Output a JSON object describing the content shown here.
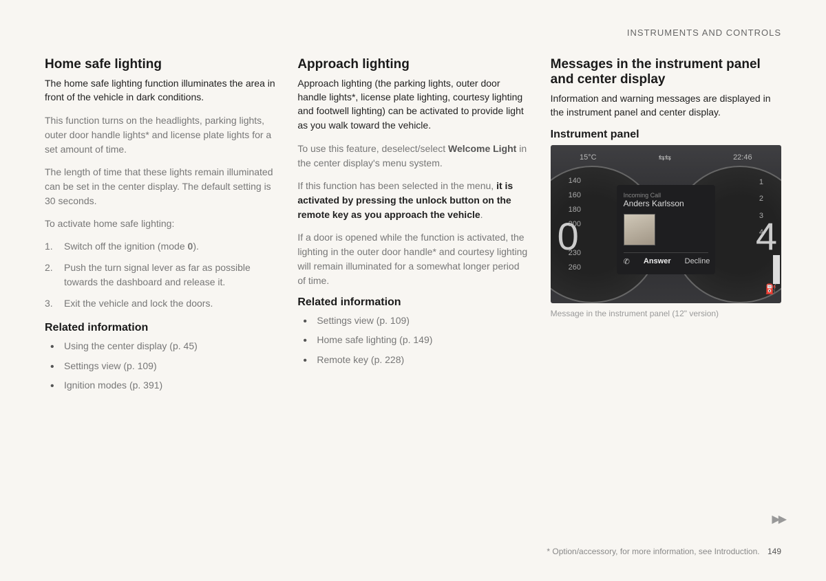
{
  "header": {
    "chapter": "INSTRUMENTS AND CONTROLS"
  },
  "col1": {
    "title": "Home safe lighting",
    "intro": "The home safe lighting function illuminates the area in front of the vehicle in dark conditions.",
    "p1": "This function turns on the headlights, parking lights, outer door handle lights* and license plate lights for a set amount of time.",
    "p2": "The length of time that these lights remain illuminated can be set in the center display. The default setting is 30 seconds.",
    "p3": "To activate home safe lighting:",
    "steps": [
      "Switch off the ignition (mode 0).",
      "Push the turn signal lever as far as possible towards the dashboard and release it.",
      "Exit the vehicle and lock the doors."
    ],
    "related_title": "Related information",
    "related": [
      "Using the center display (p. 45)",
      "Settings view (p. 109)",
      "Ignition modes (p. 391)"
    ]
  },
  "col2": {
    "title": "Approach lighting",
    "intro": "Approach lighting (the parking lights, outer door handle lights*, license plate lighting, courtesy lighting and footwell lighting) can be activated to provide light as you walk toward the vehicle.",
    "p1a": "To use this feature, deselect/select ",
    "p1b": "Welcome Light",
    "p1c": " in the center display's menu system.",
    "p2a": "If this function has been selected in the menu, ",
    "p2b": "it is activated by pressing the unlock button on the remote key as you approach the vehicle",
    "p2c": ".",
    "p3": "If a door is opened while the function is activated, the lighting in the outer door handle* and courtesy lighting will remain illuminated for a somewhat longer period of time.",
    "related_title": "Related information",
    "related": [
      "Settings view (p. 109)",
      "Home safe lighting (p. 149)",
      "Remote key (p. 228)"
    ]
  },
  "col3": {
    "title": "Messages in the instrument panel and center display",
    "intro": "Information and warning messages are displayed in the instrument panel and center display.",
    "sub": "Instrument panel",
    "panel": {
      "temp": "15°C",
      "time": "22:46",
      "ticks_left": [
        "140",
        "160",
        "180",
        "200",
        "—",
        "230",
        "260"
      ],
      "ticks_right": [
        "1",
        "2",
        "3",
        "4"
      ],
      "big_left": "0",
      "big_right": "4",
      "incoming": "Incoming Call",
      "caller": "Anders Karlsson",
      "answer": "Answer",
      "decline": "Decline"
    },
    "caption": "Message in the instrument panel (12\" version)"
  },
  "footer": {
    "note": "* Option/accessory, for more information, see Introduction.",
    "page": "149"
  },
  "arrows": "▶▶"
}
